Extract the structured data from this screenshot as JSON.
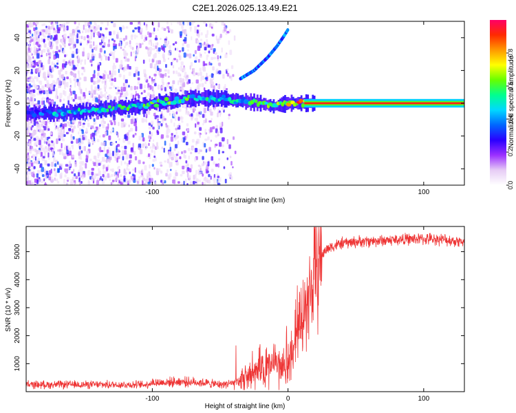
{
  "figure": {
    "title": "C2E1.2026.025.13.49.E21"
  },
  "chart_data": [
    {
      "type": "heatmap",
      "xlabel": "Height of straight line (km)",
      "ylabel": "Frequency (Hz)",
      "xlim": [
        -193,
        130
      ],
      "ylim": [
        -50,
        50
      ],
      "xticks": [
        -100,
        0,
        100
      ],
      "xtick_labels": [
        "-100",
        "",
        "100"
      ],
      "yticks": [
        -40,
        -20,
        0,
        20,
        40
      ],
      "ytick_labels": [
        "-40",
        "-20",
        "0",
        "20",
        "40"
      ],
      "grid": false,
      "colorbar": {
        "label": "Normalized spectral amplitude",
        "range": [
          0,
          1
        ],
        "ticks": [
          0,
          0.2,
          0.4,
          0.6,
          0.8
        ],
        "tick_labels": [
          "0.0",
          "0.2",
          "0.4",
          "0.6",
          "0.8"
        ],
        "colors": [
          "#ffffff",
          "#e6ccf5",
          "#9b30ff",
          "#2a00ff",
          "#0066ff",
          "#00d8ff",
          "#00ff90",
          "#66ff00",
          "#ffff00",
          "#ff9900",
          "#ff2a00",
          "#ff0066"
        ]
      },
      "ridge": [
        {
          "x": -190,
          "f": -6,
          "a": 0.35
        },
        {
          "x": -170,
          "f": -6,
          "a": 0.45
        },
        {
          "x": -150,
          "f": -5,
          "a": 0.5
        },
        {
          "x": -130,
          "f": -3,
          "a": 0.5
        },
        {
          "x": -110,
          "f": -2,
          "a": 0.55
        },
        {
          "x": -90,
          "f": 1,
          "a": 0.6
        },
        {
          "x": -70,
          "f": 3,
          "a": 0.55
        },
        {
          "x": -50,
          "f": 3,
          "a": 0.5
        },
        {
          "x": -30,
          "f": 1,
          "a": 0.45
        },
        {
          "x": -20,
          "f": 0,
          "a": 0.7
        },
        {
          "x": -10,
          "f": -2,
          "a": 0.55
        },
        {
          "x": 0,
          "f": 0,
          "a": 0.8
        },
        {
          "x": 10,
          "f": 0,
          "a": 0.85
        },
        {
          "x": 20,
          "f": 0,
          "a": 0.95
        },
        {
          "x": 130,
          "f": 0,
          "a": 0.95
        }
      ],
      "arc": [
        {
          "x": -35,
          "f": 15
        },
        {
          "x": -25,
          "f": 20
        },
        {
          "x": -15,
          "f": 28
        },
        {
          "x": -8,
          "f": 35
        },
        {
          "x": -3,
          "f": 41
        },
        {
          "x": 0,
          "f": 45
        }
      ]
    },
    {
      "type": "line",
      "xlabel": "Height of straight line (km)",
      "ylabel": "SNR (10 * v/v)",
      "xlim": [
        -193,
        130
      ],
      "ylim": [
        0,
        5900
      ],
      "xticks": [
        -100,
        0,
        100
      ],
      "xtick_labels": [
        "-100",
        "0",
        "100"
      ],
      "yticks": [
        1000,
        2000,
        3000,
        4000,
        5000
      ],
      "ytick_labels": [
        "1000",
        "2000",
        "3000",
        "4000",
        "5000"
      ],
      "grid": false,
      "color": "#ee3333",
      "series": [
        {
          "name": "SNR",
          "x": [
            -193,
            -160,
            -130,
            -105,
            -100,
            -95,
            -80,
            -65,
            -50,
            -40,
            -30,
            -20,
            -15,
            -10,
            -5,
            0,
            2,
            5,
            10,
            15,
            20,
            25,
            30,
            40,
            50,
            70,
            90,
            110,
            130
          ],
          "y": [
            250,
            250,
            250,
            250,
            330,
            320,
            360,
            330,
            250,
            320,
            500,
            700,
            900,
            1000,
            1000,
            900,
            1400,
            2000,
            2700,
            3300,
            4300,
            4900,
            5150,
            5300,
            5350,
            5400,
            5450,
            5450,
            5350
          ]
        }
      ]
    }
  ]
}
